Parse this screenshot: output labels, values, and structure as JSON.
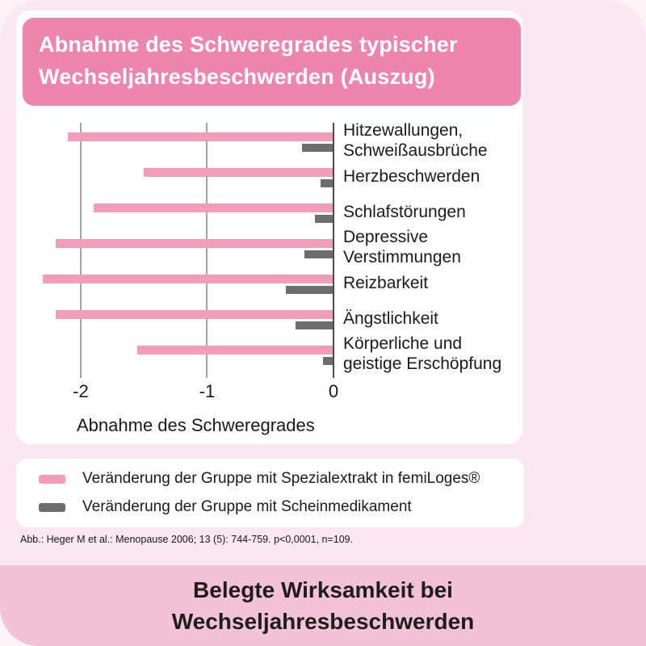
{
  "header": {
    "title": "Abnahme des Schweregrades typischer\nWechseljahresbeschwerden (Auszug)"
  },
  "chart_data": {
    "type": "bar",
    "orientation": "horizontal",
    "title": "Abnahme des Schweregrades typischer Wechseljahresbeschwerden (Auszug)",
    "categories": [
      "Hitzewallungen,\nSchweißausbrüche",
      "Herzbeschwerden",
      "Schlafstörungen",
      "Depressive\nVerstimmungen",
      "Reizbarkeit",
      "Ängstlichkeit",
      "Körperliche und\ngeistige Erschöpfung"
    ],
    "series": [
      {
        "name": "Veränderung der Gruppe mit Spezialextrakt in femiLoges®",
        "color": "#f29cb9",
        "values": [
          -2.1,
          -1.5,
          -1.9,
          -2.2,
          -2.3,
          -2.2,
          -1.55
        ]
      },
      {
        "name": "Veränderung der Gruppe mit Scheinmedikament",
        "color": "#6d6d6d",
        "values": [
          -0.25,
          -0.1,
          -0.15,
          -0.23,
          -0.38,
          -0.3,
          -0.08
        ]
      }
    ],
    "xlabel": "Abnahme des Schweregrades",
    "xlim": [
      -2.14,
      0
    ],
    "xticks": [
      -2,
      -1,
      0
    ],
    "grid": true,
    "legend_position": "bottom"
  },
  "footnote": "Abb.: Heger M et al.: Menopause 2006; 13 (5): 744-759. p<0,0001, n=109.",
  "banner": {
    "text": "Belegte Wirksamkeit bei\nWechseljahresbeschwerden"
  },
  "colors": {
    "outer_background": "#fdf3f7",
    "main_background": "#fbe7ef",
    "header_pink": "#ee86ac",
    "bar_pink": "#f29cb9",
    "bar_gray": "#6d6d6d",
    "banner_pink": "#f4c2d6",
    "gridline": "#a3a3a3",
    "axis": "#4c4c4c",
    "text": "#1a1a1a"
  }
}
